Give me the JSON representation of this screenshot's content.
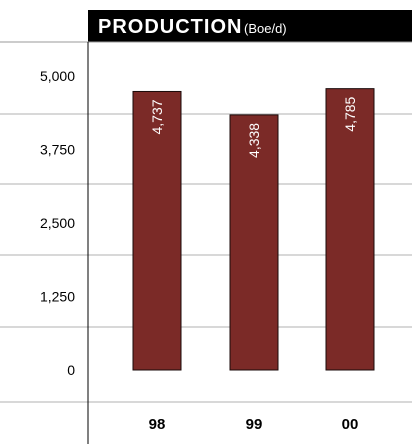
{
  "chart_data": {
    "type": "bar",
    "title": "PRODUCTION",
    "unit": "(Boe/d)",
    "categories": [
      "98",
      "99",
      "00"
    ],
    "values": [
      4737,
      4338,
      4785
    ],
    "value_labels": [
      "4,737",
      "4,338",
      "4,785"
    ],
    "y_ticks": [
      {
        "value": 5000,
        "label": "5,000"
      },
      {
        "value": 3750,
        "label": "3,750"
      },
      {
        "value": 2500,
        "label": "2,500"
      },
      {
        "value": 1250,
        "label": "1,250"
      },
      {
        "value": 0,
        "label": "0"
      }
    ],
    "ylim": [
      0,
      6250
    ],
    "grid": true,
    "bar_color": "#7b2a27"
  }
}
